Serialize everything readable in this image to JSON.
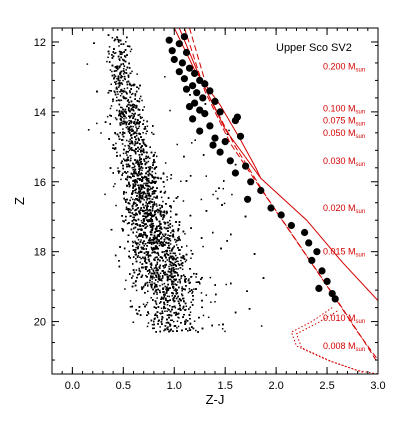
{
  "chart_data": {
    "type": "scatter",
    "title": "Upper Sco SV2",
    "xlabel": "Z-J",
    "ylabel": "Z",
    "xlim": [
      -0.2,
      3.0
    ],
    "ylim": [
      21.5,
      11.6
    ],
    "y_inverted": true,
    "x_ticks": [
      0.0,
      0.5,
      1.0,
      1.5,
      2.0,
      2.5,
      3.0
    ],
    "x_tick_labels": [
      "0.0",
      "0.5",
      "1.0",
      "1.5",
      "2.0",
      "2.5",
      "3.0"
    ],
    "y_ticks": [
      12,
      14,
      16,
      18,
      20
    ],
    "y_tick_labels": [
      "12",
      "14",
      "16",
      "18",
      "20"
    ],
    "colors": {
      "field": "#000000",
      "isochrone": "#d40000"
    },
    "field_population": {
      "description_value_ranges": "dense cloud of small black dots",
      "z_range": [
        11.6,
        20.3
      ],
      "color_center_at_bright": 0.45,
      "color_center_at_faint": 1.05
    },
    "candidates": [
      {
        "x": 0.95,
        "y": 11.95
      },
      {
        "x": 1.05,
        "y": 12.05
      },
      {
        "x": 1.1,
        "y": 11.85
      },
      {
        "x": 0.98,
        "y": 12.25
      },
      {
        "x": 1.12,
        "y": 12.3
      },
      {
        "x": 1.0,
        "y": 12.5
      },
      {
        "x": 1.08,
        "y": 12.6
      },
      {
        "x": 1.15,
        "y": 12.75
      },
      {
        "x": 1.05,
        "y": 12.85
      },
      {
        "x": 1.2,
        "y": 12.9
      },
      {
        "x": 1.1,
        "y": 13.05
      },
      {
        "x": 1.25,
        "y": 13.1
      },
      {
        "x": 1.18,
        "y": 13.25
      },
      {
        "x": 1.3,
        "y": 13.2
      },
      {
        "x": 1.12,
        "y": 13.35
      },
      {
        "x": 1.22,
        "y": 13.45
      },
      {
        "x": 1.35,
        "y": 13.4
      },
      {
        "x": 1.28,
        "y": 13.6
      },
      {
        "x": 1.2,
        "y": 13.75
      },
      {
        "x": 1.15,
        "y": 13.85
      },
      {
        "x": 1.4,
        "y": 13.7
      },
      {
        "x": 1.25,
        "y": 13.95
      },
      {
        "x": 1.3,
        "y": 14.05
      },
      {
        "x": 1.45,
        "y": 14.0
      },
      {
        "x": 1.18,
        "y": 14.2
      },
      {
        "x": 1.62,
        "y": 14.15
      },
      {
        "x": 1.6,
        "y": 14.25
      },
      {
        "x": 1.35,
        "y": 14.4
      },
      {
        "x": 1.25,
        "y": 14.55
      },
      {
        "x": 1.4,
        "y": 14.75
      },
      {
        "x": 1.5,
        "y": 14.85
      },
      {
        "x": 1.65,
        "y": 14.7
      },
      {
        "x": 1.38,
        "y": 14.95
      },
      {
        "x": 1.45,
        "y": 15.15
      },
      {
        "x": 1.55,
        "y": 15.4
      },
      {
        "x": 1.7,
        "y": 15.55
      },
      {
        "x": 1.6,
        "y": 15.75
      },
      {
        "x": 1.75,
        "y": 16.0
      },
      {
        "x": 1.85,
        "y": 16.25
      },
      {
        "x": 1.72,
        "y": 16.5
      },
      {
        "x": 1.95,
        "y": 16.75
      },
      {
        "x": 2.05,
        "y": 16.95
      },
      {
        "x": 2.15,
        "y": 17.25
      },
      {
        "x": 2.28,
        "y": 17.45
      },
      {
        "x": 2.32,
        "y": 17.75
      },
      {
        "x": 2.4,
        "y": 18.0
      },
      {
        "x": 2.35,
        "y": 18.25
      },
      {
        "x": 2.45,
        "y": 18.55
      },
      {
        "x": 2.5,
        "y": 18.85
      },
      {
        "x": 2.42,
        "y": 19.05
      },
      {
        "x": 2.55,
        "y": 19.2
      },
      {
        "x": 2.58,
        "y": 19.35
      }
    ],
    "isochrones": [
      {
        "style": "solid",
        "points": [
          [
            1.0,
            11.6
          ],
          [
            1.2,
            12.8
          ],
          [
            1.45,
            13.8
          ],
          [
            1.65,
            14.8
          ],
          [
            1.8,
            15.6
          ],
          [
            1.85,
            15.9
          ]
        ]
      },
      {
        "style": "solid",
        "points": [
          [
            1.05,
            11.6
          ],
          [
            1.25,
            13.0
          ],
          [
            1.5,
            14.5
          ],
          [
            1.85,
            15.9
          ],
          [
            2.3,
            17.1
          ],
          [
            2.65,
            18.3
          ],
          [
            3.0,
            19.4
          ]
        ]
      },
      {
        "style": "dashed",
        "points": [
          [
            1.1,
            11.6
          ],
          [
            1.3,
            13.4
          ],
          [
            1.55,
            14.9
          ],
          [
            1.85,
            16.2
          ],
          [
            2.2,
            17.7
          ],
          [
            2.55,
            19.2
          ],
          [
            2.8,
            20.3
          ],
          [
            3.0,
            21.1
          ]
        ]
      },
      {
        "style": "dashed",
        "points": [
          [
            1.15,
            11.6
          ],
          [
            1.35,
            13.6
          ],
          [
            1.6,
            15.0
          ],
          [
            1.9,
            16.4
          ],
          [
            2.25,
            17.9
          ],
          [
            2.6,
            19.4
          ],
          [
            2.85,
            20.5
          ],
          [
            3.0,
            21.2
          ]
        ]
      },
      {
        "style": "dotted",
        "points": [
          [
            2.55,
            19.6
          ],
          [
            2.35,
            20.0
          ],
          [
            2.15,
            20.3
          ],
          [
            2.2,
            20.7
          ],
          [
            2.5,
            21.1
          ],
          [
            2.8,
            21.4
          ],
          [
            3.0,
            21.5
          ]
        ]
      },
      {
        "style": "dotted",
        "points": [
          [
            2.6,
            19.7
          ],
          [
            2.4,
            20.05
          ],
          [
            2.2,
            20.35
          ],
          [
            2.25,
            20.75
          ],
          [
            2.55,
            21.15
          ],
          [
            2.85,
            21.45
          ]
        ]
      }
    ],
    "mass_labels": [
      {
        "text": "0.200",
        "y": 12.7
      },
      {
        "text": "0.100",
        "y": 13.9
      },
      {
        "text": "0.075",
        "y": 14.25
      },
      {
        "text": "0.050",
        "y": 14.6
      },
      {
        "text": "0.030",
        "y": 15.4
      },
      {
        "text": "0.020",
        "y": 16.75
      },
      {
        "text": "0.015",
        "y": 18.0
      },
      {
        "text": "0.010",
        "y": 19.9
      },
      {
        "text": "0.008",
        "y": 20.7
      }
    ],
    "mass_unit": "M",
    "mass_unit_sub": "sun"
  }
}
